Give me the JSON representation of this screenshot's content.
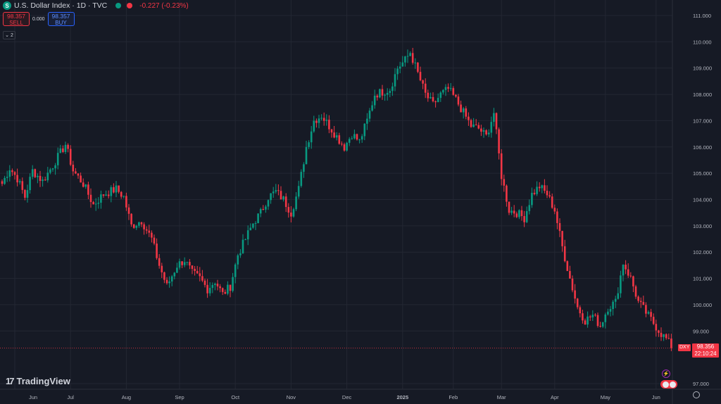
{
  "header": {
    "title": "U.S. Dollar Index · 1D · TVC",
    "change": "-0.227 (-0.23%)",
    "symbol_icon": "S"
  },
  "trade": {
    "sell_price": "98.357",
    "sell_label": "SELL",
    "spread": "0.000",
    "buy_price": "98.357",
    "buy_label": "BUY"
  },
  "indicators": {
    "count": "2"
  },
  "branding": {
    "name": "TradingView"
  },
  "price_tag": {
    "symbol": "DXY",
    "price": "98.356",
    "countdown": "22:10:24"
  },
  "colors": {
    "background": "#161a25",
    "up": "#089981",
    "down": "#f23645",
    "grid": "#232733",
    "axis_text": "#b2b5be"
  },
  "chart_data": {
    "type": "candlestick",
    "ylim": [
      96.8,
      111.4
    ],
    "y_ticks": [
      "97.000",
      "99.000",
      "100.000",
      "101.000",
      "102.000",
      "103.000",
      "104.000",
      "105.000",
      "106.000",
      "107.000",
      "108.000",
      "109.000",
      "110.000",
      "111.000"
    ],
    "y_tick_values": [
      97,
      99,
      100,
      101,
      102,
      103,
      104,
      105,
      106,
      107,
      108,
      109,
      110,
      111
    ],
    "x_labels": [
      "Jun",
      "Jul",
      "Aug",
      "Sep",
      "Oct",
      "Nov",
      "Dec",
      "2025",
      "Feb",
      "Mar",
      "Apr",
      "May",
      "Jun"
    ],
    "x_label_index": [
      5,
      27,
      49,
      70,
      92,
      114,
      136,
      158,
      178,
      197,
      218,
      238,
      258
    ],
    "current_price": 98.356,
    "anchors": [
      [
        0,
        104.6
      ],
      [
        3,
        105.2
      ],
      [
        6,
        104.8
      ],
      [
        9,
        104.1
      ],
      [
        12,
        105.1
      ],
      [
        16,
        104.7
      ],
      [
        20,
        105.3
      ],
      [
        25,
        106.1
      ],
      [
        28,
        105.1
      ],
      [
        32,
        104.6
      ],
      [
        36,
        103.8
      ],
      [
        40,
        104.2
      ],
      [
        45,
        104.4
      ],
      [
        48,
        104.1
      ],
      [
        51,
        103.0
      ],
      [
        55,
        103.2
      ],
      [
        59,
        102.5
      ],
      [
        62,
        101.5
      ],
      [
        65,
        100.7
      ],
      [
        69,
        101.5
      ],
      [
        72,
        101.7
      ],
      [
        75,
        101.2
      ],
      [
        78,
        101.0
      ],
      [
        81,
        100.6
      ],
      [
        84,
        100.9
      ],
      [
        87,
        100.4
      ],
      [
        90,
        100.7
      ],
      [
        93,
        101.9
      ],
      [
        96,
        102.5
      ],
      [
        99,
        103.1
      ],
      [
        102,
        103.5
      ],
      [
        105,
        104.1
      ],
      [
        108,
        104.3
      ],
      [
        111,
        104.0
      ],
      [
        114,
        103.5
      ],
      [
        117,
        104.4
      ],
      [
        120,
        106.0
      ],
      [
        123,
        107.0
      ],
      [
        126,
        107.2
      ],
      [
        129,
        106.8
      ],
      [
        132,
        106.4
      ],
      [
        135,
        106.0
      ],
      [
        138,
        106.5
      ],
      [
        141,
        106.2
      ],
      [
        144,
        107.0
      ],
      [
        147,
        108.0
      ],
      [
        150,
        108.1
      ],
      [
        153,
        108.2
      ],
      [
        156,
        109.0
      ],
      [
        159,
        109.3
      ],
      [
        161,
        109.6
      ],
      [
        164,
        108.8
      ],
      [
        167,
        108.0
      ],
      [
        170,
        107.6
      ],
      [
        173,
        108.0
      ],
      [
        176,
        108.2
      ],
      [
        179,
        107.8
      ],
      [
        182,
        107.3
      ],
      [
        185,
        106.8
      ],
      [
        188,
        106.7
      ],
      [
        191,
        106.4
      ],
      [
        194,
        107.3
      ],
      [
        197,
        104.9
      ],
      [
        200,
        103.6
      ],
      [
        203,
        103.5
      ],
      [
        206,
        103.3
      ],
      [
        209,
        104.2
      ],
      [
        212,
        104.5
      ],
      [
        215,
        104.2
      ],
      [
        218,
        103.6
      ],
      [
        221,
        102.2
      ],
      [
        224,
        101.0
      ],
      [
        227,
        99.9
      ],
      [
        230,
        99.4
      ],
      [
        233,
        99.6
      ],
      [
        236,
        99.2
      ],
      [
        239,
        99.9
      ],
      [
        242,
        100.1
      ],
      [
        245,
        101.6
      ],
      [
        248,
        101.0
      ],
      [
        251,
        100.1
      ],
      [
        254,
        99.7
      ],
      [
        257,
        99.3
      ],
      [
        260,
        98.9
      ],
      [
        262,
        98.7
      ],
      [
        264,
        98.4
      ]
    ]
  }
}
